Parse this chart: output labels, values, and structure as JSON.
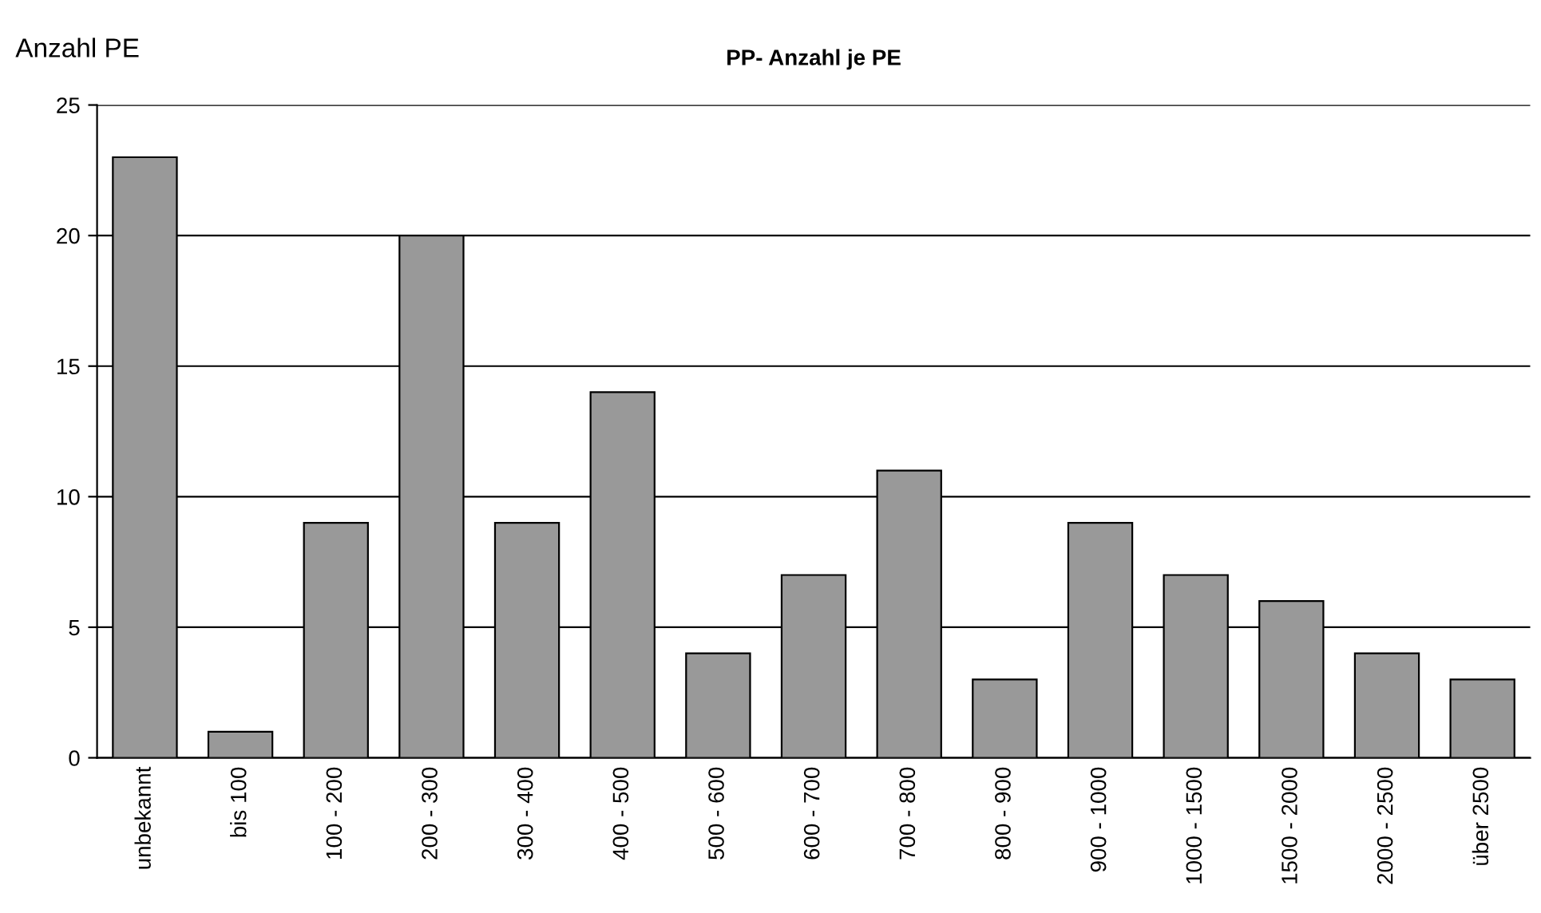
{
  "chart_data": {
    "type": "bar",
    "title": "PP- Anzahl je PE",
    "ylabel": "Anzahl PE",
    "categories": [
      "unbekannt",
      "bis 100",
      "100 - 200",
      "200 - 300",
      "300 - 400",
      "400 - 500",
      "500 - 600",
      "600 - 700",
      "700 - 800",
      "800 - 900",
      "900 - 1000",
      "1000 - 1500",
      "1500 - 2000",
      "2000 - 2500",
      "über 2500"
    ],
    "values": [
      23,
      1,
      9,
      20,
      9,
      14,
      4,
      7,
      11,
      3,
      9,
      7,
      6,
      4,
      3
    ],
    "color": "#999999",
    "ylim": [
      0,
      25
    ],
    "yticks": [
      0,
      5,
      10,
      15,
      20,
      25
    ],
    "grid": "y",
    "legend": false
  }
}
